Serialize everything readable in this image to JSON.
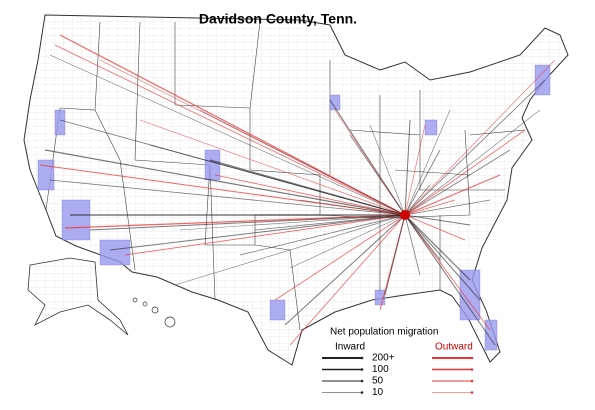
{
  "map": {
    "title": "Davidson County, Tenn."
  },
  "legend": {
    "title": "Net population migration",
    "inward": "Inward",
    "outward": "Outward",
    "levels": [
      "200+",
      "100",
      "50",
      "10"
    ]
  }
}
